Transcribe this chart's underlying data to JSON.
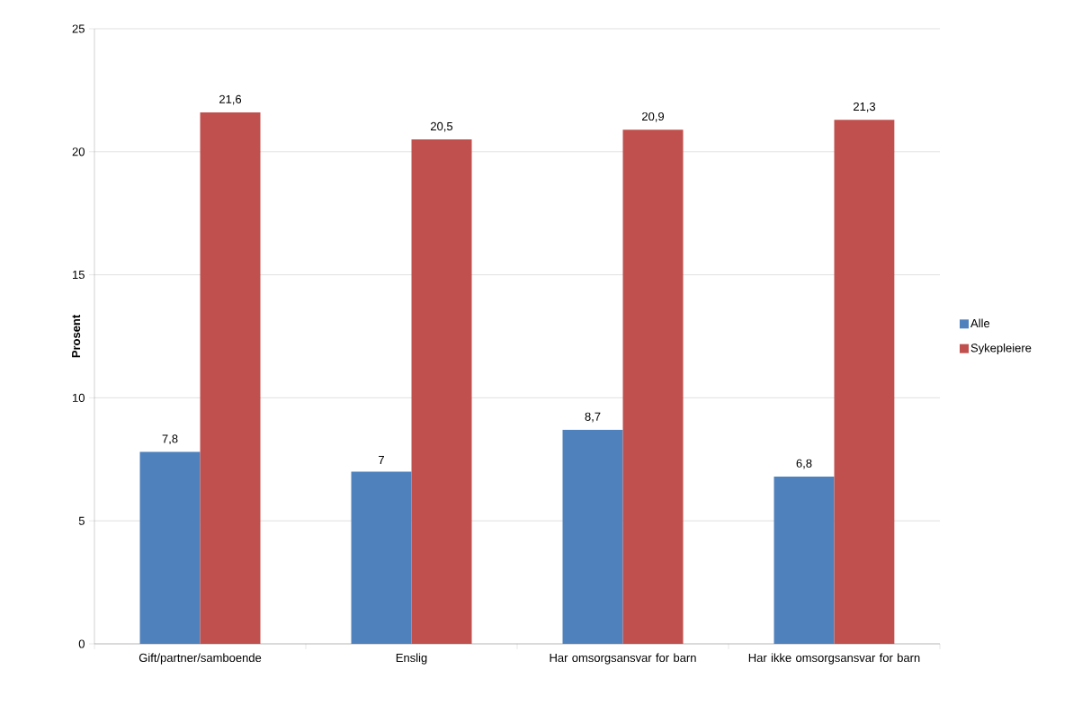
{
  "chart_data": {
    "type": "bar",
    "ylabel": "Prosent",
    "categories": [
      "Gift/partner/samboende",
      "Enslig",
      "Har omsorgsansvar for barn",
      "Har ikke omsorgsansvar for barn"
    ],
    "series": [
      {
        "name": "Alle",
        "color": "#4f81bd",
        "values": [
          7.8,
          7,
          8.7,
          6.8
        ],
        "value_labels": [
          "7,8",
          "7",
          "8,7",
          "6,8"
        ]
      },
      {
        "name": "Sykepleiere",
        "color": "#c0504d",
        "values": [
          21.6,
          20.5,
          20.9,
          21.3
        ],
        "value_labels": [
          "21,6",
          "20,5",
          "20,9",
          "21,3"
        ]
      }
    ],
    "ylim": [
      0,
      25
    ],
    "yticks": [
      0,
      5,
      10,
      15,
      20,
      25
    ],
    "grid": "y",
    "legend": "right"
  }
}
